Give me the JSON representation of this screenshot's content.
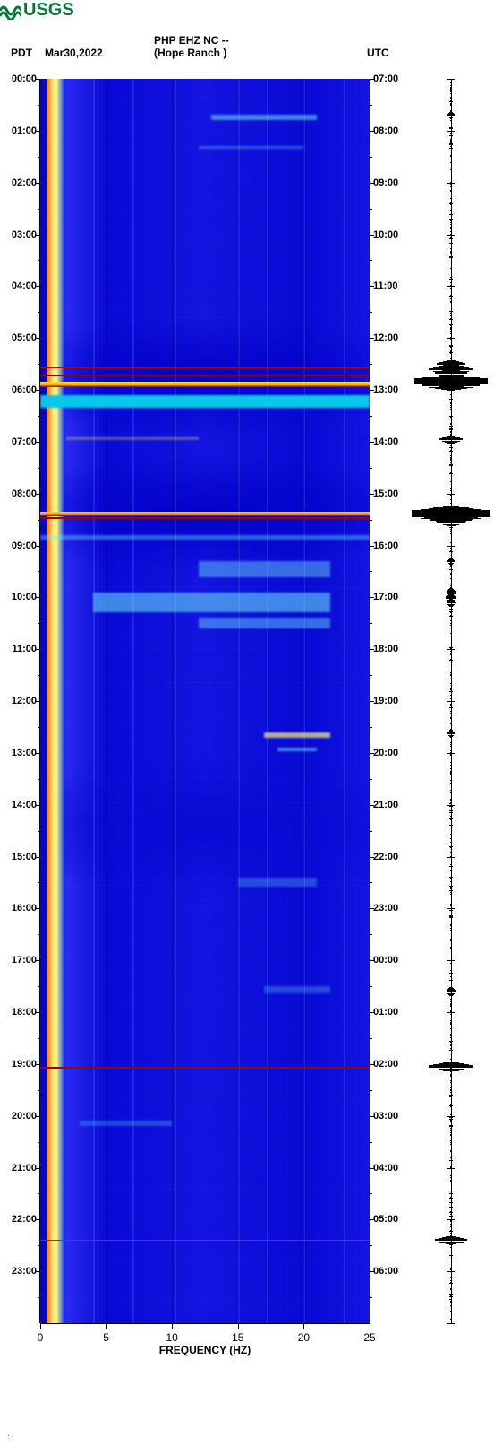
{
  "logo_text": "USGS",
  "header": {
    "tz_left": "PDT",
    "date": "Mar30,2022",
    "station": "PHP EHZ NC --",
    "location": "(Hope Ranch )",
    "tz_right": "UTC"
  },
  "xaxis": {
    "label": "FREQUENCY (HZ)",
    "min": 0,
    "max": 25,
    "ticks": [
      0,
      5,
      10,
      15,
      20,
      25
    ]
  },
  "yaxis": {
    "hours": 24,
    "left_labels": [
      "00:00",
      "01:00",
      "02:00",
      "03:00",
      "04:00",
      "05:00",
      "06:00",
      "07:00",
      "08:00",
      "09:00",
      "10:00",
      "11:00",
      "12:00",
      "13:00",
      "14:00",
      "15:00",
      "16:00",
      "17:00",
      "18:00",
      "19:00",
      "20:00",
      "21:00",
      "22:00",
      "23:00"
    ],
    "right_labels": [
      "07:00",
      "08:00",
      "09:00",
      "10:00",
      "11:00",
      "12:00",
      "13:00",
      "14:00",
      "15:00",
      "16:00",
      "17:00",
      "18:00",
      "19:00",
      "20:00",
      "21:00",
      "22:00",
      "23:00",
      "00:00",
      "01:00",
      "02:00",
      "03:00",
      "04:00",
      "05:00",
      "06:00"
    ]
  },
  "spectrogram": {
    "bg_gradient": [
      "#0809d4",
      "#2a2af0",
      "#0000c8",
      "#1414e0",
      "#0404c0"
    ],
    "lowfreq_band": {
      "from_hz": 0.5,
      "to_hz": 1.8,
      "color": "#fff47a",
      "edge": "#ff5a00"
    },
    "vertical_faint_cols_hz": [
      0.5,
      1,
      1.5,
      4,
      7,
      10.2,
      15,
      17.2,
      20,
      23
    ],
    "glitches": [
      {
        "hour": 5.55,
        "thick": 2,
        "color": "#b80000"
      },
      {
        "hour": 5.7,
        "thick": 1,
        "color": "#9a0000"
      },
      {
        "hour": 5.85,
        "thick": 6,
        "color": "linear-gradient(#fff200,#ff9a00,#b80000)"
      },
      {
        "hour": 8.35,
        "thick": 5,
        "color": "linear-gradient(#ffec00,#ff7800,#9c0000)"
      },
      {
        "hour": 8.45,
        "thick": 2,
        "color": "#a00000"
      },
      {
        "hour": 19.05,
        "thick": 2,
        "color": "#a00000"
      },
      {
        "hour": 22.4,
        "thick": 1,
        "color": "#7a4a00"
      }
    ],
    "patches": [
      {
        "hour": 0.7,
        "hz0": 13,
        "hz1": 21,
        "h": 6,
        "color": "rgba(120,255,255,0.5)"
      },
      {
        "hour": 1.3,
        "hz0": 12,
        "hz1": 20,
        "h": 3,
        "color": "rgba(120,255,255,0.3)"
      },
      {
        "hour": 6.1,
        "hz0": 0,
        "hz1": 25,
        "h": 14,
        "color": "#07c8e8"
      },
      {
        "hour": 6.9,
        "hz0": 2,
        "hz1": 12,
        "h": 4,
        "color": "rgba(255,240,120,0.3)"
      },
      {
        "hour": 8.8,
        "hz0": 0,
        "hz1": 25,
        "h": 5,
        "color": "rgba(100,240,255,0.4)"
      },
      {
        "hour": 9.3,
        "hz0": 12,
        "hz1": 22,
        "h": 18,
        "color": "rgba(120,255,255,0.4)"
      },
      {
        "hour": 9.9,
        "hz0": 4,
        "hz1": 22,
        "h": 22,
        "color": "rgba(120,255,255,0.5)"
      },
      {
        "hour": 10.4,
        "hz0": 12,
        "hz1": 22,
        "h": 12,
        "color": "rgba(120,255,255,0.4)"
      },
      {
        "hour": 12.6,
        "hz0": 17,
        "hz1": 22,
        "h": 6,
        "color": "rgba(255,240,120,0.7)"
      },
      {
        "hour": 12.9,
        "hz0": 18,
        "hz1": 21,
        "h": 4,
        "color": "rgba(120,255,255,0.5)"
      },
      {
        "hour": 15.4,
        "hz0": 15,
        "hz1": 21,
        "h": 10,
        "color": "rgba(120,255,255,0.25)"
      },
      {
        "hour": 17.5,
        "hz0": 17,
        "hz1": 22,
        "h": 8,
        "color": "rgba(120,255,255,0.25)"
      },
      {
        "hour": 20.1,
        "hz0": 3,
        "hz1": 10,
        "h": 6,
        "color": "rgba(80,220,255,0.3)"
      }
    ],
    "x_gridlines_hz": [
      5,
      10,
      15,
      20
    ]
  },
  "trace": {
    "baseline_noise": 0.03,
    "events": [
      {
        "hour": 0.7,
        "amp": 0.08,
        "height": 2
      },
      {
        "hour": 5.5,
        "amp": 0.35,
        "height": 2
      },
      {
        "hour": 5.6,
        "amp": 0.55,
        "height": 3
      },
      {
        "hour": 5.68,
        "amp": 0.4,
        "height": 2
      },
      {
        "hour": 5.82,
        "amp": 0.9,
        "height": 6
      },
      {
        "hour": 5.9,
        "amp": 0.7,
        "height": 4
      },
      {
        "hour": 6.95,
        "amp": 0.28,
        "height": 2
      },
      {
        "hour": 8.3,
        "amp": 0.55,
        "height": 3
      },
      {
        "hour": 8.38,
        "amp": 0.95,
        "height": 8
      },
      {
        "hour": 8.46,
        "amp": 0.65,
        "height": 4
      },
      {
        "hour": 8.55,
        "amp": 0.35,
        "height": 2
      },
      {
        "hour": 9.3,
        "amp": 0.08,
        "height": 2
      },
      {
        "hour": 9.9,
        "amp": 0.1,
        "height": 4
      },
      {
        "hour": 10.0,
        "amp": 0.12,
        "height": 3
      },
      {
        "hour": 10.1,
        "amp": 0.1,
        "height": 2
      },
      {
        "hour": 12.63,
        "amp": 0.08,
        "height": 2
      },
      {
        "hour": 17.6,
        "amp": 0.1,
        "height": 3
      },
      {
        "hour": 19.05,
        "amp": 0.55,
        "height": 3
      },
      {
        "hour": 22.4,
        "amp": 0.4,
        "height": 2
      }
    ]
  },
  "footnote": "."
}
